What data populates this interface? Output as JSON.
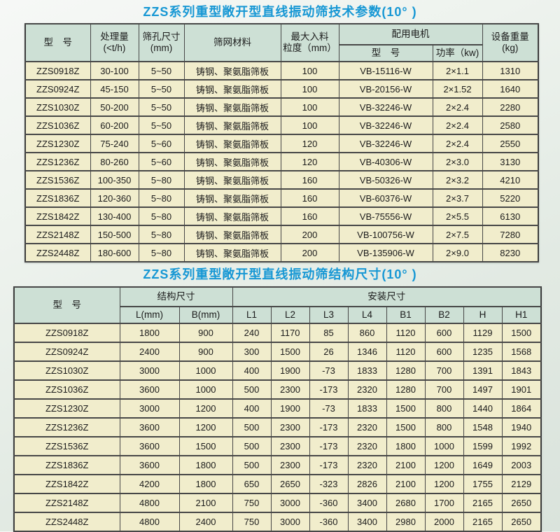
{
  "titles": {
    "table1": "ZZS系列重型敞开型直线振动筛技术参数(10°  )",
    "table2": "ZZS系列重型敞开型直线振动筛结构尺寸(10°  )"
  },
  "colors": {
    "title_blue": "#1697d4",
    "header_bg": "#cde0d5",
    "cell_bg": "#f1edcc",
    "border": "#474747"
  },
  "table1": {
    "header": {
      "model": "型　号",
      "capacity": [
        "处理量",
        "(<t/h)"
      ],
      "aperture": [
        "筛孔尺寸",
        "(mm)"
      ],
      "mesh": "筛网材料",
      "max_feed": [
        "最大入料",
        "粒度（mm）"
      ],
      "motor_group": "配用电机",
      "motor_model": "型　号",
      "motor_power": "功率（kw)",
      "weight": [
        "设备重量",
        "(kg)"
      ]
    },
    "rows": [
      [
        "ZZS0918Z",
        "30-100",
        "5~50",
        "铸钢、聚氨脂筛板",
        "100",
        "VB-15116-W",
        "2×1.1",
        "1310"
      ],
      [
        "ZZS0924Z",
        "45-150",
        "5~50",
        "铸钢、聚氨脂筛板",
        "100",
        "VB-20156-W",
        "2×1.52",
        "1640"
      ],
      [
        "ZZS1030Z",
        "50-200",
        "5~50",
        "铸钢、聚氨脂筛板",
        "100",
        "VB-32246-W",
        "2×2.4",
        "2280"
      ],
      [
        "ZZS1036Z",
        "60-200",
        "5~50",
        "铸钢、聚氨脂筛板",
        "100",
        "VB-32246-W",
        "2×2.4",
        "2580"
      ],
      [
        "ZZS1230Z",
        "75-240",
        "5~60",
        "铸钢、聚氨脂筛板",
        "120",
        "VB-32246-W",
        "2×2.4",
        "2550"
      ],
      [
        "ZZS1236Z",
        "80-260",
        "5~60",
        "铸钢、聚氨脂筛板",
        "120",
        "VB-40306-W",
        "2×3.0",
        "3130"
      ],
      [
        "ZZS1536Z",
        "100-350",
        "5~80",
        "铸钢、聚氨脂筛板",
        "160",
        "VB-50326-W",
        "2×3.2",
        "4210"
      ],
      [
        "ZZS1836Z",
        "120-360",
        "5~80",
        "铸钢、聚氨脂筛板",
        "160",
        "VB-60376-W",
        "2×3.7",
        "5220"
      ],
      [
        "ZZS1842Z",
        "130-400",
        "5~80",
        "铸钢、聚氨脂筛板",
        "160",
        "VB-75556-W",
        "2×5.5",
        "6130"
      ],
      [
        "ZZS2148Z",
        "150-500",
        "5~80",
        "铸钢、聚氨脂筛板",
        "200",
        "VB-100756-W",
        "2×7.5",
        "7280"
      ],
      [
        "ZZS2448Z",
        "180-600",
        "5~80",
        "铸钢、聚氨脂筛板",
        "200",
        "VB-135906-W",
        "2×9.0",
        "8230"
      ]
    ]
  },
  "table2": {
    "header": {
      "model": "型　号",
      "structure_group": "结构尺寸",
      "l": "L(mm)",
      "b": "B(mm)",
      "install_group": "安装尺寸",
      "install_cols": [
        "L1",
        "L2",
        "L3",
        "L4",
        "B1",
        "B2",
        "H",
        "H1"
      ]
    },
    "rows": [
      [
        "ZZS0918Z",
        "1800",
        "900",
        "240",
        "1170",
        "85",
        "860",
        "1120",
        "600",
        "1129",
        "1500"
      ],
      [
        "ZZS0924Z",
        "2400",
        "900",
        "300",
        "1500",
        "26",
        "1346",
        "1120",
        "600",
        "1235",
        "1568"
      ],
      [
        "ZZS1030Z",
        "3000",
        "1000",
        "400",
        "1900",
        "-73",
        "1833",
        "1280",
        "700",
        "1391",
        "1843"
      ],
      [
        "ZZS1036Z",
        "3600",
        "1000",
        "500",
        "2300",
        "-173",
        "2320",
        "1280",
        "700",
        "1497",
        "1901"
      ],
      [
        "ZZS1230Z",
        "3000",
        "1200",
        "400",
        "1900",
        "-73",
        "1833",
        "1500",
        "800",
        "1440",
        "1864"
      ],
      [
        "ZZS1236Z",
        "3600",
        "1200",
        "500",
        "2300",
        "-173",
        "2320",
        "1500",
        "800",
        "1548",
        "1940"
      ],
      [
        "ZZS1536Z",
        "3600",
        "1500",
        "500",
        "2300",
        "-173",
        "2320",
        "1800",
        "1000",
        "1599",
        "1992"
      ],
      [
        "ZZS1836Z",
        "3600",
        "1800",
        "500",
        "2300",
        "-173",
        "2320",
        "2100",
        "1200",
        "1649",
        "2003"
      ],
      [
        "ZZS1842Z",
        "4200",
        "1800",
        "650",
        "2650",
        "-323",
        "2826",
        "2100",
        "1200",
        "1755",
        "2129"
      ],
      [
        "ZZS2148Z",
        "4800",
        "2100",
        "750",
        "3000",
        "-360",
        "3400",
        "2680",
        "1700",
        "2165",
        "2650"
      ],
      [
        "ZZS2448Z",
        "4800",
        "2400",
        "750",
        "3000",
        "-360",
        "3400",
        "2980",
        "2000",
        "2165",
        "2650"
      ]
    ]
  }
}
